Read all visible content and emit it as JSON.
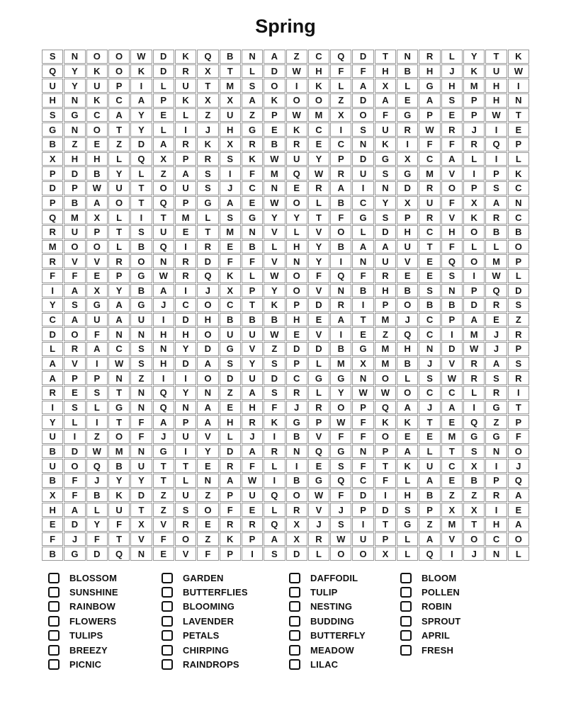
{
  "title": "Spring",
  "grid": {
    "columns": 22,
    "rows": [
      "SNOOWDKQBNAZCQDTNRLYTK",
      "QYKOKDRXTLDWHFFHBHJKUW",
      "UYUPILUTMSOIKLAXLGHMHI",
      "HNKCAPKXXAKOOZDAEASPHN",
      "SGCAYELZUZPWMXOFGPEPWT",
      "GNOTYLIJHGEKCISURWRJIE",
      "BZEZDARKXRBRECNKIFFRQP",
      "XHHLQXPRSKWUYPDGXCALIL",
      "PDBYLZASIFMQWRUSGMVIPK",
      "DPWUTOUSJCNERAINDROPSC",
      "PBAOTQPGAEWOLBCYXUFXAN",
      "QMXLITMLSGYYTFGSPRVKRC",
      "RUPTSUETMNVLVOLDHCHOBB",
      "MOOLBQIREBLHYBAAUTFLLO",
      "RVVRONRDFFVNYINUVEQOMP",
      "FFEPGWRQKLWOFQFREESIWL",
      "IAXYBAIJXPYOVNBHBSNPQD",
      "YSGAGJCOCTKPDRIPOBBDRS",
      "CAUAUIDHBBBHEATMJCPAEZ",
      "DOFNNHHOUUWEVIEZQCIMJR",
      "LRACSNYDGVZDDBGMHNDWJP",
      "AVIWSHDASYSPLMXMBJVRAS",
      "APPNZIIODUDCGGNOLSWRSR",
      "RESTNQYNZASRLYWWOCCLRI",
      "ISLGNQNAEHFJROPQAJAIGT",
      "YLITFAPAHRKGPWFKKTEQZP",
      "UIZOFJUVLJIBVFFOEEMGGF",
      "BDWMNGIYDARNQGNPALTSNO",
      "UOQBUTTERFLIESFTKUCXIJ",
      "BFJYYTLNAWIBGQCFLAEBPQ",
      "XFBKDZUZPUQOWFDIHBZZRA",
      "HALUTZSOFELRVJPDSPXXIE",
      "EDYFXVRERRQXJSITGZMTHA",
      "FJFTVFOZKPAXRWUPLAVOCO",
      "BGDQNEVFPISDLOOXLQIJNL"
    ]
  },
  "word_list": {
    "columns": [
      [
        "BLOSSOM",
        "SUNSHINE",
        "RAINBOW",
        "FLOWERS",
        "TULIPS",
        "BREEZY",
        "PICNIC"
      ],
      [
        "GARDEN",
        "BUTTERFLIES",
        "BLOOMING",
        "LAVENDER",
        "PETALS",
        "CHIRPING",
        "RAINDROPS"
      ],
      [
        "DAFFODIL",
        "TULIP",
        "NESTING",
        "BUDDING",
        "BUTTERFLY",
        "MEADOW",
        "LILAC"
      ],
      [
        "BLOOM",
        "POLLEN",
        "ROBIN",
        "SPROUT",
        "APRIL",
        "FRESH"
      ]
    ]
  },
  "colors": {
    "background": "#ffffff",
    "grid_border": "#979797",
    "text": "#111111"
  }
}
